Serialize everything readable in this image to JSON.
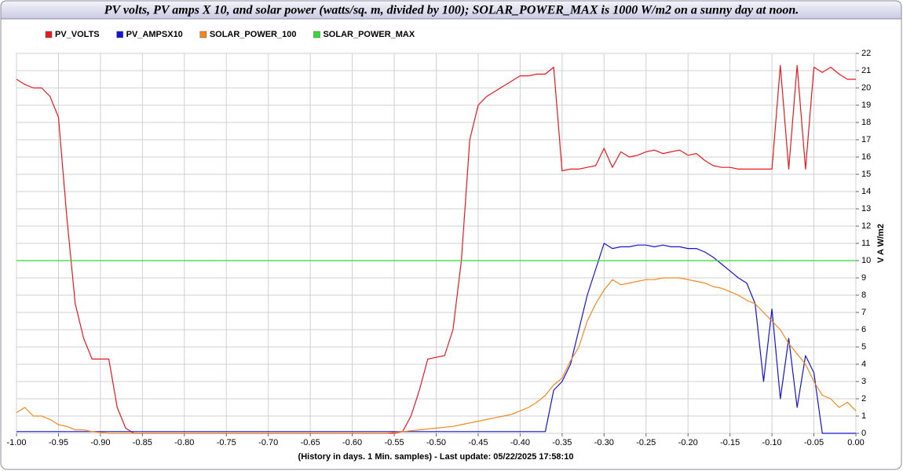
{
  "chart_data": {
    "type": "line",
    "title": "PV volts, PV amps X 10, and solar power (watts/sq. m, divided by 100); SOLAR_POWER_MAX is 1000 W/m2 on a sunny day at noon.",
    "x_label": "(History in days. 1 Min. samples) - Last update: 05/22/2025 17:58:10",
    "y_label": "V A W/m2",
    "grid": true,
    "xlim": [
      -1,
      0
    ],
    "ylim": [
      0,
      22
    ],
    "xticks": [
      {
        "value": -1,
        "label": "-1.00"
      },
      {
        "value": -0.95,
        "label": "-0.95"
      },
      {
        "value": -0.9,
        "label": "-0.90"
      },
      {
        "value": -0.85,
        "label": "-0.85"
      },
      {
        "value": -0.8,
        "label": "-0.80"
      },
      {
        "value": -0.75,
        "label": "-0.75"
      },
      {
        "value": -0.7,
        "label": "-0.70"
      },
      {
        "value": -0.65,
        "label": "-0.65"
      },
      {
        "value": -0.6,
        "label": "-0.60"
      },
      {
        "value": -0.55,
        "label": "-0.55"
      },
      {
        "value": -0.5,
        "label": "-0.50"
      },
      {
        "value": -0.45,
        "label": "-0.45"
      },
      {
        "value": -0.4,
        "label": "-0.40"
      },
      {
        "value": -0.35,
        "label": "-0.35"
      },
      {
        "value": -0.3,
        "label": "-0.30"
      },
      {
        "value": -0.25,
        "label": "-0.25"
      },
      {
        "value": -0.2,
        "label": "-0.20"
      },
      {
        "value": -0.15,
        "label": "-0.15"
      },
      {
        "value": -0.1,
        "label": "-0.10"
      },
      {
        "value": -0.05,
        "label": "-0.05"
      },
      {
        "value": 0,
        "label": "0.00"
      }
    ],
    "yticks": [
      0,
      1,
      2,
      3,
      4,
      5,
      6,
      7,
      8,
      9,
      10,
      11,
      12,
      13,
      14,
      15,
      16,
      17,
      18,
      19,
      20,
      21,
      22
    ],
    "x": [
      -1,
      -0.99,
      -0.98,
      -0.97,
      -0.96,
      -0.95,
      -0.94,
      -0.93,
      -0.92,
      -0.91,
      -0.9,
      -0.89,
      -0.88,
      -0.87,
      -0.86,
      -0.85,
      -0.84,
      -0.83,
      -0.82,
      -0.81,
      -0.8,
      -0.79,
      -0.78,
      -0.77,
      -0.76,
      -0.75,
      -0.74,
      -0.73,
      -0.72,
      -0.71,
      -0.7,
      -0.69,
      -0.68,
      -0.67,
      -0.66,
      -0.65,
      -0.64,
      -0.63,
      -0.62,
      -0.61,
      -0.6,
      -0.59,
      -0.58,
      -0.57,
      -0.56,
      -0.55,
      -0.54,
      -0.53,
      -0.52,
      -0.51,
      -0.5,
      -0.49,
      -0.48,
      -0.47,
      -0.46,
      -0.45,
      -0.44,
      -0.43,
      -0.42,
      -0.41,
      -0.4,
      -0.39,
      -0.38,
      -0.37,
      -0.36,
      -0.35,
      -0.34,
      -0.33,
      -0.32,
      -0.31,
      -0.3,
      -0.29,
      -0.28,
      -0.27,
      -0.26,
      -0.25,
      -0.24,
      -0.23,
      -0.22,
      -0.21,
      -0.2,
      -0.19,
      -0.18,
      -0.17,
      -0.16,
      -0.15,
      -0.14,
      -0.13,
      -0.12,
      -0.11,
      -0.1,
      -0.09,
      -0.08,
      -0.07,
      -0.06,
      -0.05,
      -0.04,
      -0.03,
      -0.02,
      -0.01,
      0
    ],
    "series": [
      {
        "name": "PV_VOLTS",
        "color": "#e8191e",
        "values": [
          20.5,
          20.2,
          20.0,
          20.0,
          19.5,
          18.3,
          12.5,
          7.5,
          5.5,
          4.3,
          4.3,
          4.3,
          1.5,
          0.3,
          0,
          0,
          0,
          0,
          0,
          0,
          0,
          0,
          0,
          0,
          0,
          0,
          0,
          0,
          0,
          0,
          0,
          0,
          0,
          0,
          0,
          0,
          0,
          0,
          0,
          0,
          0,
          0,
          0,
          0,
          0,
          0,
          0.1,
          1.0,
          2.5,
          4.3,
          4.4,
          4.5,
          6.0,
          10.0,
          17.0,
          19.0,
          19.5,
          19.8,
          20.1,
          20.4,
          20.7,
          20.7,
          20.8,
          20.8,
          21.2,
          15.2,
          15.3,
          15.3,
          15.4,
          15.5,
          16.5,
          15.4,
          16.3,
          16.0,
          16.1,
          16.3,
          16.4,
          16.2,
          16.3,
          16.4,
          16.1,
          16.2,
          15.8,
          15.5,
          15.4,
          15.4,
          15.3,
          15.3,
          15.3,
          15.3,
          15.3,
          21.3,
          15.3,
          21.3,
          15.3,
          21.2,
          20.9,
          21.2,
          20.8,
          20.5,
          20.5
        ]
      },
      {
        "name": "PV_AMPSX10",
        "color": "#1414d2",
        "values": [
          0.1,
          0.1,
          0.1,
          0.1,
          0.1,
          0.1,
          0.1,
          0.1,
          0.1,
          0.1,
          0.1,
          0.1,
          0.1,
          0.1,
          0.1,
          0.1,
          0.1,
          0.1,
          0.1,
          0.1,
          0.1,
          0.1,
          0.1,
          0.1,
          0.1,
          0.1,
          0.1,
          0.1,
          0.1,
          0.1,
          0.1,
          0.1,
          0.1,
          0.1,
          0.1,
          0.1,
          0.1,
          0.1,
          0.1,
          0.1,
          0.1,
          0.1,
          0.1,
          0.1,
          0.1,
          0.1,
          0.1,
          0.1,
          0.1,
          0.1,
          0.1,
          0.1,
          0.1,
          0.1,
          0.1,
          0.1,
          0.1,
          0.1,
          0.1,
          0.1,
          0.1,
          0.1,
          0.1,
          0.1,
          2.5,
          3,
          4,
          6,
          8,
          9.5,
          11,
          10.7,
          10.8,
          10.8,
          10.9,
          10.9,
          10.8,
          10.9,
          10.8,
          10.8,
          10.7,
          10.7,
          10.5,
          10.2,
          9.8,
          9.4,
          9.0,
          8.7,
          7.5,
          3.0,
          7.2,
          2.0,
          5.5,
          1.5,
          4.5,
          3.5,
          0,
          0,
          0,
          0,
          0
        ]
      },
      {
        "name": "SOLAR_POWER_100",
        "color": "#f5871e",
        "values": [
          1.2,
          1.5,
          1.0,
          1.0,
          0.8,
          0.5,
          0.4,
          0.2,
          0.2,
          0.1,
          0.05,
          0,
          0,
          0,
          0,
          0,
          0,
          0,
          0,
          0,
          0,
          0,
          0,
          0,
          0,
          0,
          0,
          0,
          0,
          0,
          0,
          0,
          0,
          0,
          0,
          0,
          0,
          0,
          0,
          0,
          0,
          0,
          0,
          0,
          0,
          0.05,
          0.1,
          0.15,
          0.2,
          0.25,
          0.3,
          0.35,
          0.4,
          0.5,
          0.6,
          0.7,
          0.8,
          0.9,
          1.0,
          1.1,
          1.3,
          1.5,
          1.8,
          2.2,
          2.8,
          3.2,
          4.2,
          5.0,
          6.5,
          7.5,
          8.3,
          8.9,
          8.6,
          8.7,
          8.8,
          8.9,
          8.9,
          9.0,
          9.0,
          9.0,
          8.9,
          8.8,
          8.7,
          8.5,
          8.4,
          8.2,
          8.0,
          7.7,
          7.5,
          7.0,
          6.5,
          6.0,
          5.2,
          4.6,
          4.0,
          3.0,
          2.2,
          2.0,
          1.5,
          1.8,
          1.3
        ]
      },
      {
        "name": "SOLAR_POWER_MAX",
        "color": "#32dc32",
        "values": [
          10,
          10,
          10,
          10,
          10,
          10,
          10,
          10,
          10,
          10,
          10,
          10,
          10,
          10,
          10,
          10,
          10,
          10,
          10,
          10,
          10,
          10,
          10,
          10,
          10,
          10,
          10,
          10,
          10,
          10,
          10,
          10,
          10,
          10,
          10,
          10,
          10,
          10,
          10,
          10,
          10,
          10,
          10,
          10,
          10,
          10,
          10,
          10,
          10,
          10,
          10,
          10,
          10,
          10,
          10,
          10,
          10,
          10,
          10,
          10,
          10,
          10,
          10,
          10,
          10,
          10,
          10,
          10,
          10,
          10,
          10,
          10,
          10,
          10,
          10,
          10,
          10,
          10,
          10,
          10,
          10,
          10,
          10,
          10,
          10,
          10,
          10,
          10,
          10,
          10,
          10,
          10,
          10,
          10,
          10,
          10,
          10,
          10,
          10,
          10,
          10
        ]
      }
    ]
  }
}
